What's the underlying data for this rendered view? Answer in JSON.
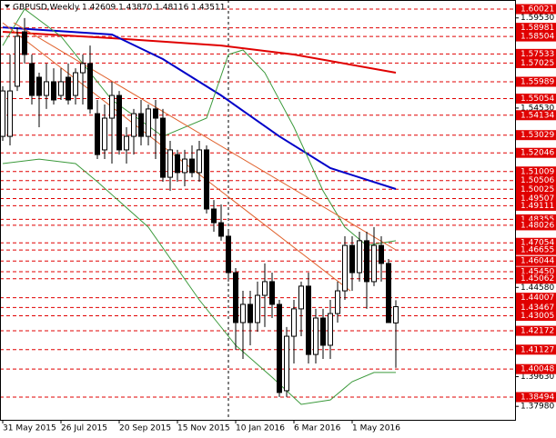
{
  "chart_data": {
    "type": "candlestick",
    "title": "GBPUSD,Weekly  1.42609 1.43870 1.48116 1.43511",
    "categories": [
      "31 May 2015",
      null,
      null,
      null,
      null,
      null,
      null,
      null,
      "26 Jul 2015",
      null,
      null,
      null,
      null,
      null,
      null,
      null,
      "20 Sep 2015",
      null,
      null,
      null,
      null,
      null,
      null,
      null,
      "15 Nov 2015",
      null,
      null,
      null,
      null,
      null,
      null,
      null,
      "10 Jan 2016",
      null,
      null,
      null,
      null,
      null,
      null,
      null,
      "6 Mar 2016",
      null,
      null,
      null,
      null,
      null,
      null,
      null,
      "1 May 2016",
      null,
      null,
      null,
      null,
      null,
      null
    ],
    "open": [
      1.5296,
      1.5296,
      1.5574,
      1.5876,
      1.57,
      1.5624,
      1.5523,
      1.5599,
      1.5523,
      1.5624,
      1.5523,
      1.5649,
      1.57,
      1.5422,
      1.5221,
      1.5397,
      1.5523,
      1.5221,
      1.5296,
      1.5422,
      1.5296,
      1.5448,
      1.5397,
      1.5069,
      1.5195,
      1.5095,
      1.517,
      1.5095,
      1.5221,
      1.4893,
      1.4817,
      1.4742,
      1.454,
      1.4263,
      1.4364,
      1.4263,
      1.4414,
      1.449,
      1.4364,
      1.3885,
      1.4187,
      1.4339,
      1.4465,
      1.4086,
      1.4288,
      1.4137,
      1.4313,
      1.4439,
      1.4691,
      1.454,
      1.4717,
      1.449,
      1.4691,
      1.4591,
      1.4261
    ],
    "high": [
      1.5574,
      1.575,
      1.5901,
      1.5952,
      1.575,
      1.5649,
      1.57,
      1.5674,
      1.5674,
      1.57,
      1.5674,
      1.575,
      1.58,
      1.5498,
      1.5473,
      1.5599,
      1.5548,
      1.5347,
      1.5448,
      1.5498,
      1.5473,
      1.5498,
      1.5448,
      1.5271,
      1.5221,
      1.5221,
      1.5246,
      1.5271,
      1.5246,
      1.4943,
      1.4918,
      1.4767,
      1.4565,
      1.4439,
      1.4439,
      1.449,
      1.4591,
      1.454,
      1.4389,
      1.4238,
      1.4389,
      1.449,
      1.454,
      1.4339,
      1.4339,
      1.4389,
      1.449,
      1.4742,
      1.4742,
      1.4767,
      1.4767,
      1.4792,
      1.4742,
      1.4616,
      1.4387
    ],
    "low": [
      1.5271,
      1.5246,
      1.5548,
      1.57,
      1.5473,
      1.5347,
      1.5448,
      1.5473,
      1.5498,
      1.5473,
      1.5473,
      1.5473,
      1.5422,
      1.517,
      1.517,
      1.5145,
      1.5195,
      1.5145,
      1.5195,
      1.5246,
      1.5246,
      1.517,
      1.5044,
      1.4994,
      1.5044,
      1.5019,
      1.5069,
      1.5044,
      1.4868,
      1.4767,
      1.4717,
      1.449,
      1.4112,
      1.4061,
      1.4137,
      1.4212,
      1.4238,
      1.4288,
      1.385,
      1.385,
      1.4036,
      1.4187,
      1.4036,
      1.4036,
      1.4061,
      1.4061,
      1.4263,
      1.4389,
      1.4439,
      1.449,
      1.4339,
      1.4465,
      1.449,
      1.4263,
      1.4012
    ],
    "close": [
      1.5548,
      1.5548,
      1.5851,
      1.575,
      1.5523,
      1.5523,
      1.5599,
      1.5498,
      1.5599,
      1.5498,
      1.5649,
      1.57,
      1.5448,
      1.5195,
      1.5397,
      1.5523,
      1.5221,
      1.5296,
      1.5422,
      1.5296,
      1.5448,
      1.5397,
      1.5069,
      1.5221,
      1.5095,
      1.517,
      1.5095,
      1.5221,
      1.4893,
      1.4817,
      1.4742,
      1.454,
      1.4263,
      1.4364,
      1.4263,
      1.4414,
      1.449,
      1.4364,
      1.3875,
      1.4187,
      1.4339,
      1.4465,
      1.4086,
      1.4288,
      1.4137,
      1.4313,
      1.4439,
      1.4691,
      1.454,
      1.4717,
      1.449,
      1.4691,
      1.4591,
      1.4263,
      1.4351
    ],
    "bull_color": "#ffffff",
    "bear_color": "#000000",
    "xlim": [
      -0.375,
      70.375
    ],
    "ylim": [
      1.37234,
      1.60525
    ],
    "yticks": [
      {
        "value": 1.5953,
        "label": "1.59530"
      },
      {
        "value": 1.5453,
        "label": "1.54530"
      },
      {
        "value": 1.4458,
        "label": "1.44580"
      },
      {
        "value": 1.3963,
        "label": "1.39630"
      },
      {
        "value": 1.3798,
        "label": "1.37980"
      }
    ],
    "level_color": "#e00000",
    "levels": [
      1.60021,
      1.58981,
      1.58504,
      1.57533,
      1.57025,
      1.55989,
      1.55054,
      1.54134,
      1.53029,
      1.52046,
      1.51009,
      1.50506,
      1.50025,
      1.49507,
      1.49111,
      1.48355,
      1.48026,
      1.47054,
      1.46655,
      1.46044,
      {
        "value": 1.4545,
        "label": "1.45450"
      },
      1.45062,
      1.44007,
      1.43467,
      1.43005,
      1.42172,
      1.41127,
      1.40048,
      1.38494
    ],
    "overlays": [
      {
        "color": "#e00000",
        "x": [
          0,
          15,
          30,
          40,
          54
        ],
        "values": [
          1.5876,
          1.5841,
          1.58,
          1.575,
          1.5649
        ]
      },
      {
        "color": "#0000c8",
        "x": [
          0,
          15,
          22,
          30,
          38,
          45,
          54
        ],
        "values": [
          1.5901,
          1.5861,
          1.5725,
          1.5523,
          1.5296,
          1.512,
          1.5004
        ]
      },
      {
        "color": "#3c9a3c",
        "x": [
          0,
          3,
          8,
          15,
          22,
          28,
          31,
          33,
          36,
          40,
          44,
          47,
          50,
          54
        ],
        "values": [
          1.58,
          1.6002,
          1.5851,
          1.5498,
          1.5296,
          1.5397,
          1.575,
          1.5775,
          1.5649,
          1.5347,
          1.4994,
          1.4792,
          1.4691,
          1.4717
        ]
      },
      {
        "color": "#3c9a3c",
        "x": [
          0,
          5,
          10,
          13,
          20,
          27,
          32,
          37,
          41,
          45,
          48,
          51,
          54
        ],
        "values": [
          1.5145,
          1.517,
          1.5145,
          1.5044,
          1.4792,
          1.4389,
          1.4137,
          1.396,
          1.3809,
          1.3834,
          1.3935,
          1.3986,
          1.3986
        ]
      },
      {
        "color": "#e0602a",
        "x": [
          0,
          47.75
        ],
        "values": [
          1.5926,
          1.4439
        ]
      },
      {
        "color": "#e0602a",
        "x": [
          1.5,
          54
        ],
        "values": [
          1.5926,
          1.4666
        ]
      }
    ]
  }
}
